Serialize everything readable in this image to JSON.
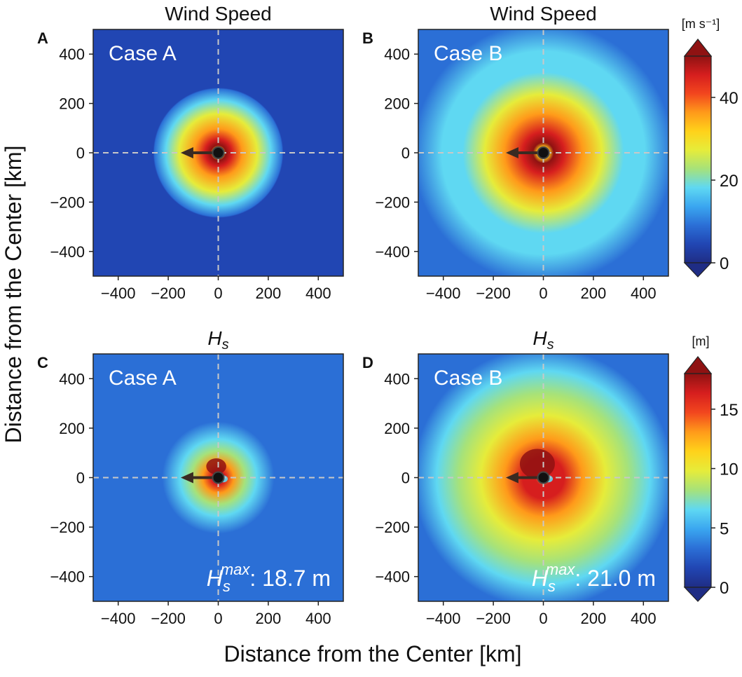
{
  "figure": {
    "ylabel": "Distance from the Center [km]",
    "xlabel": "Distance from the Center [km]"
  },
  "colors": {
    "background": "#2f55b0",
    "dash_line": "#c8c8c8",
    "case_text": "#ffffff",
    "arrow": "#3a2a22",
    "colormap": [
      "#1f2d85",
      "#2146b3",
      "#2b6fd6",
      "#3aa6f0",
      "#5fd8f2",
      "#a6e27a",
      "#e6ec3a",
      "#ffd21a",
      "#ff9a1a",
      "#f2461e",
      "#d61e1e",
      "#8f1212"
    ]
  },
  "chart_data": [
    {
      "id": "A",
      "panel_letter": "A",
      "type": "heatmap",
      "title": "Wind Speed",
      "case_label": "Case A",
      "xlim": [
        -500,
        500
      ],
      "ylim": [
        -500,
        500
      ],
      "xticks": [
        -400,
        -200,
        0,
        200,
        400
      ],
      "yticks": [
        400,
        200,
        0,
        -200,
        -400
      ],
      "xtick_labels": [
        "−400",
        "−200",
        "0",
        "200",
        "400"
      ],
      "ytick_labels": [
        "400",
        "200",
        "0",
        "−200",
        "−400"
      ],
      "field": "wind_speed",
      "rmw_km": 30,
      "r_outer_km": 260,
      "vmax": 49,
      "motion_vector_km": [
        -150,
        0
      ],
      "annotation": null
    },
    {
      "id": "B",
      "panel_letter": "B",
      "type": "heatmap",
      "title": "Wind Speed",
      "case_label": "Case B",
      "xlim": [
        -500,
        500
      ],
      "ylim": [
        -500,
        500
      ],
      "xticks": [
        -400,
        -200,
        0,
        200,
        400
      ],
      "yticks": [
        400,
        200,
        0,
        -200,
        -400
      ],
      "xtick_labels": [
        "−400",
        "−200",
        "0",
        "200",
        "400"
      ],
      "ytick_labels": [
        "400",
        "200",
        "0",
        "−200",
        "−400"
      ],
      "field": "wind_speed",
      "rmw_km": 40,
      "r_outer_km": 520,
      "vmax": 49,
      "motion_vector_km": [
        -150,
        0
      ],
      "annotation": null
    },
    {
      "id": "C",
      "panel_letter": "C",
      "type": "heatmap",
      "title": "H_s",
      "title_main": "H",
      "title_sub": "s",
      "case_label": "Case A",
      "xlim": [
        -500,
        500
      ],
      "ylim": [
        -500,
        500
      ],
      "xticks": [
        -400,
        -200,
        0,
        200,
        400
      ],
      "yticks": [
        400,
        200,
        0,
        -200,
        -400
      ],
      "xtick_labels": [
        "−400",
        "−200",
        "0",
        "200",
        "400"
      ],
      "ytick_labels": [
        "400",
        "200",
        "0",
        "−200",
        "−400"
      ],
      "field": "wave_height",
      "hmax": 18.7,
      "r_outer_km": 280,
      "motion_vector_km": [
        -150,
        0
      ],
      "annotation": {
        "main": "H",
        "sub": "s",
        "sup": "max",
        "value": ": 18.7 m"
      }
    },
    {
      "id": "D",
      "panel_letter": "D",
      "type": "heatmap",
      "title": "H_s",
      "title_main": "H",
      "title_sub": "s",
      "case_label": "Case B",
      "xlim": [
        -500,
        500
      ],
      "ylim": [
        -500,
        500
      ],
      "xticks": [
        -400,
        -200,
        0,
        200,
        400
      ],
      "yticks": [
        400,
        200,
        0,
        -200,
        -400
      ],
      "xtick_labels": [
        "−400",
        "−200",
        "0",
        "200",
        "400"
      ],
      "ytick_labels": [
        "400",
        "200",
        "0",
        "−200",
        "−400"
      ],
      "field": "wave_height",
      "hmax": 21.0,
      "r_outer_km": 520,
      "motion_vector_km": [
        -150,
        0
      ],
      "annotation": {
        "main": "H",
        "sub": "s",
        "sup": "max",
        "value": ": 21.0 m"
      }
    }
  ],
  "colorbars": [
    {
      "id": "wind",
      "unit_label": "[m s⁻¹]",
      "vmin": 0,
      "vmax": 50,
      "ticks": [
        0,
        20,
        40
      ],
      "tick_labels": [
        "0",
        "20",
        "40"
      ],
      "extend": "both"
    },
    {
      "id": "hs",
      "unit_label": "[m]",
      "vmin": 0,
      "vmax": 18,
      "ticks": [
        0,
        5,
        10,
        15
      ],
      "tick_labels": [
        "0",
        "5",
        "10",
        "15"
      ],
      "extend": "both"
    }
  ]
}
